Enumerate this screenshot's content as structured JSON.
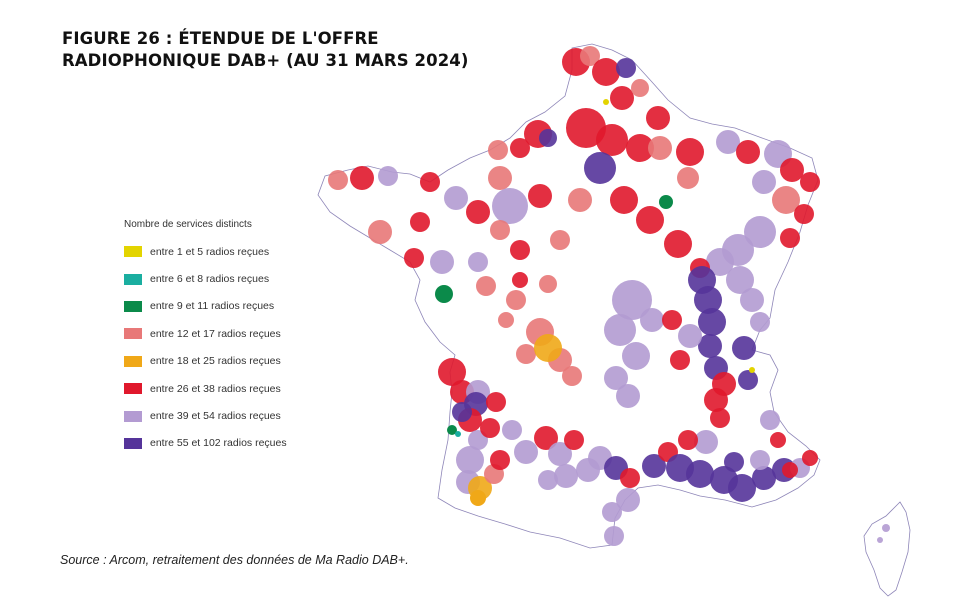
{
  "title": {
    "line1": "FIGURE 26  : ÉTENDUE DE L'OFFRE",
    "line2": "RADIOPHONIQUE DAB+ (AU 31 MARS 2024)"
  },
  "legend": {
    "title": "Nombre de services distincts",
    "items": [
      {
        "label": "entre 1 et 5 radios reçues",
        "color": "#e3d400"
      },
      {
        "label": "entre 6 et 8 radios reçues",
        "color": "#1aaea0"
      },
      {
        "label": "entre 9 et 11 radios reçues",
        "color": "#0b8a4a"
      },
      {
        "label": "entre 12 et 17 radios reçues",
        "color": "#e87878"
      },
      {
        "label": "entre 18 et 25 radios reçues",
        "color": "#f0a818"
      },
      {
        "label": "entre 26 et 38 radios reçues",
        "color": "#e0182c"
      },
      {
        "label": "entre 39 et 54 radios reçues",
        "color": "#b39bd2"
      },
      {
        "label": "entre 55 et 102 radios reçues",
        "color": "#55349a"
      }
    ]
  },
  "source": "Source : Arcom, retraitement des données de Ma Radio DAB+."
}
